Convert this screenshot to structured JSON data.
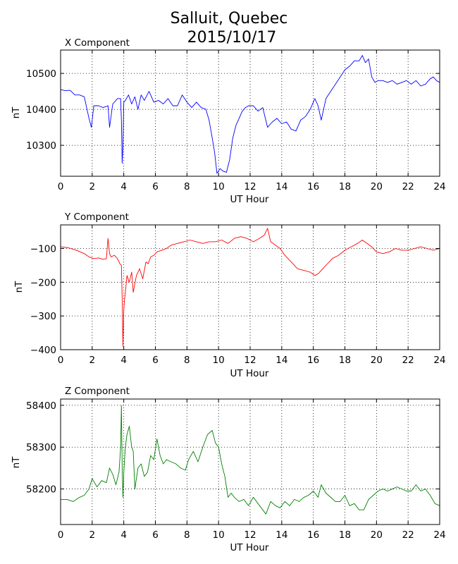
{
  "figure": {
    "title_line1": "Salluit, Quebec",
    "title_line2": "2015/10/17"
  },
  "chart_data": [
    {
      "type": "line",
      "title": "X Component",
      "xlabel": "UT Hour",
      "ylabel": "nT",
      "xlim": [
        0,
        24
      ],
      "ylim": [
        10214,
        10565
      ],
      "xticks": [
        0,
        2,
        4,
        6,
        8,
        10,
        12,
        14,
        16,
        18,
        20,
        22,
        24
      ],
      "yticks": [
        10300,
        10400,
        10500
      ],
      "grid": true,
      "color": "#0000ff",
      "series": [
        {
          "x": [
            0,
            0.3,
            0.6,
            0.9,
            1.2,
            1.5,
            1.8,
            1.95,
            2.1,
            2.4,
            2.7,
            3.0,
            3.1,
            3.3,
            3.6,
            3.8,
            3.85,
            3.9,
            3.95,
            4.0,
            4.1,
            4.3,
            4.5,
            4.7,
            4.9,
            5.1,
            5.3,
            5.6,
            5.9,
            6.2,
            6.5,
            6.8,
            7.1,
            7.4,
            7.7,
            8.0,
            8.3,
            8.6,
            8.9,
            9.2,
            9.4,
            9.6,
            9.75,
            9.9,
            10.1,
            10.3,
            10.5,
            10.7,
            10.9,
            11.1,
            11.3,
            11.5,
            11.7,
            11.9,
            12.2,
            12.5,
            12.8,
            13.1,
            13.4,
            13.7,
            14.0,
            14.3,
            14.6,
            14.9,
            15.2,
            15.5,
            15.8,
            16.1,
            16.3,
            16.5,
            16.8,
            17.1,
            17.4,
            17.7,
            18.0,
            18.3,
            18.6,
            18.9,
            19.1,
            19.3,
            19.5,
            19.7,
            19.9,
            20.1,
            20.4,
            20.7,
            21.0,
            21.3,
            21.6,
            21.9,
            22.2,
            22.5,
            22.8,
            23.1,
            23.4,
            23.6,
            23.8,
            24.0
          ],
          "y": [
            10455,
            10452,
            10453,
            10440,
            10440,
            10435,
            10375,
            10350,
            10410,
            10410,
            10405,
            10410,
            10350,
            10415,
            10430,
            10430,
            10370,
            10250,
            10300,
            10420,
            10425,
            10440,
            10415,
            10435,
            10400,
            10440,
            10425,
            10450,
            10420,
            10425,
            10415,
            10430,
            10410,
            10410,
            10440,
            10420,
            10405,
            10420,
            10405,
            10400,
            10370,
            10320,
            10280,
            10222,
            10235,
            10228,
            10225,
            10260,
            10320,
            10355,
            10375,
            10395,
            10405,
            10410,
            10410,
            10395,
            10405,
            10350,
            10365,
            10375,
            10360,
            10365,
            10345,
            10340,
            10370,
            10380,
            10400,
            10430,
            10410,
            10370,
            10430,
            10450,
            10470,
            10490,
            10510,
            10520,
            10535,
            10535,
            10550,
            10530,
            10540,
            10490,
            10475,
            10480,
            10480,
            10475,
            10480,
            10470,
            10475,
            10480,
            10470,
            10480,
            10465,
            10470,
            10485,
            10490,
            10480,
            10475
          ]
        }
      ]
    },
    {
      "type": "line",
      "title": "Y Component",
      "xlabel": "UT Hour",
      "ylabel": "nT",
      "xlim": [
        0,
        24
      ],
      "ylim": [
        -400,
        -30
      ],
      "xticks": [
        0,
        2,
        4,
        6,
        8,
        10,
        12,
        14,
        16,
        18,
        20,
        22,
        24
      ],
      "yticks": [
        -100,
        -200,
        -300,
        -400
      ],
      "ytick_labels": [
        "−100",
        "−200",
        "−300",
        "−400"
      ],
      "grid": true,
      "color": "#ff0000",
      "series": [
        {
          "x": [
            0,
            0.5,
            1.0,
            1.5,
            1.8,
            2.1,
            2.4,
            2.7,
            2.9,
            3.0,
            3.1,
            3.2,
            3.4,
            3.6,
            3.75,
            3.85,
            3.9,
            3.95,
            4.0,
            4.05,
            4.1,
            4.2,
            4.35,
            4.5,
            4.6,
            4.8,
            5.0,
            5.2,
            5.4,
            5.55,
            5.7,
            5.9,
            6.1,
            6.4,
            6.7,
            7.0,
            7.4,
            7.8,
            8.2,
            8.6,
            9.0,
            9.4,
            9.8,
            10.2,
            10.6,
            11.0,
            11.4,
            11.8,
            12.2,
            12.6,
            12.9,
            13.1,
            13.3,
            13.6,
            13.9,
            14.2,
            14.6,
            15.0,
            15.4,
            15.8,
            16.1,
            16.3,
            16.6,
            16.9,
            17.2,
            17.6,
            18.0,
            18.4,
            18.8,
            19.1,
            19.4,
            19.7,
            20.0,
            20.4,
            20.8,
            21.2,
            21.6,
            22.0,
            22.4,
            22.8,
            23.2,
            23.6,
            24.0
          ],
          "y": [
            -95,
            -98,
            -105,
            -115,
            -125,
            -130,
            -128,
            -132,
            -130,
            -70,
            -115,
            -125,
            -120,
            -130,
            -145,
            -150,
            -250,
            -390,
            -280,
            -250,
            -230,
            -180,
            -200,
            -170,
            -230,
            -180,
            -160,
            -190,
            -140,
            -145,
            -125,
            -120,
            -110,
            -105,
            -100,
            -90,
            -85,
            -80,
            -75,
            -80,
            -85,
            -80,
            -80,
            -75,
            -85,
            -70,
            -65,
            -70,
            -80,
            -70,
            -60,
            -40,
            -80,
            -90,
            -100,
            -120,
            -140,
            -160,
            -165,
            -170,
            -180,
            -175,
            -160,
            -145,
            -130,
            -120,
            -105,
            -95,
            -85,
            -75,
            -85,
            -95,
            -110,
            -115,
            -110,
            -100,
            -105,
            -105,
            -100,
            -95,
            -100,
            -105,
            -100
          ]
        }
      ]
    },
    {
      "type": "line",
      "title": "Z Component",
      "xlabel": "UT Hour",
      "ylabel": "nT",
      "xlim": [
        0,
        24
      ],
      "ylim": [
        58115,
        58415
      ],
      "xticks": [
        0,
        2,
        4,
        6,
        8,
        10,
        12,
        14,
        16,
        18,
        20,
        22,
        24
      ],
      "yticks": [
        58200,
        58300,
        58400
      ],
      "grid": true,
      "color": "#008000",
      "series": [
        {
          "x": [
            0,
            0.4,
            0.8,
            1.2,
            1.5,
            1.8,
            2.0,
            2.3,
            2.6,
            2.9,
            3.1,
            3.3,
            3.5,
            3.7,
            3.8,
            3.85,
            3.9,
            3.95,
            4.0,
            4.1,
            4.2,
            4.35,
            4.5,
            4.6,
            4.7,
            4.9,
            5.1,
            5.3,
            5.5,
            5.7,
            5.9,
            6.1,
            6.3,
            6.5,
            6.7,
            7.0,
            7.3,
            7.6,
            7.9,
            8.1,
            8.4,
            8.7,
            9.0,
            9.3,
            9.6,
            9.8,
            10.0,
            10.2,
            10.4,
            10.6,
            10.8,
            11.0,
            11.3,
            11.6,
            11.9,
            12.2,
            12.5,
            12.8,
            13.0,
            13.3,
            13.6,
            13.9,
            14.2,
            14.5,
            14.8,
            15.1,
            15.4,
            15.7,
            16.0,
            16.3,
            16.5,
            16.8,
            17.1,
            17.4,
            17.7,
            18.0,
            18.3,
            18.6,
            18.9,
            19.2,
            19.5,
            19.8,
            20.1,
            20.4,
            20.7,
            21.0,
            21.3,
            21.6,
            21.9,
            22.2,
            22.5,
            22.8,
            23.1,
            23.4,
            23.7,
            24.0
          ],
          "y": [
            58175,
            58175,
            58170,
            58180,
            58185,
            58200,
            58225,
            58205,
            58220,
            58215,
            58250,
            58235,
            58210,
            58240,
            58300,
            58400,
            58250,
            58180,
            58240,
            58300,
            58330,
            58350,
            58300,
            58290,
            58200,
            58250,
            58260,
            58230,
            58240,
            58280,
            58270,
            58320,
            58280,
            58260,
            58270,
            58265,
            58260,
            58250,
            58245,
            58270,
            58290,
            58265,
            58300,
            58330,
            58340,
            58310,
            58300,
            58260,
            58230,
            58180,
            58190,
            58180,
            58170,
            58175,
            58160,
            58180,
            58165,
            58150,
            58140,
            58170,
            58160,
            58155,
            58170,
            58160,
            58175,
            58170,
            58180,
            58185,
            58195,
            58180,
            58210,
            58190,
            58180,
            58170,
            58170,
            58185,
            58160,
            58165,
            58150,
            58150,
            58175,
            58185,
            58195,
            58200,
            58195,
            58200,
            58205,
            58200,
            58195,
            58195,
            58210,
            58195,
            58200,
            58185,
            58165,
            58160
          ]
        }
      ]
    }
  ]
}
